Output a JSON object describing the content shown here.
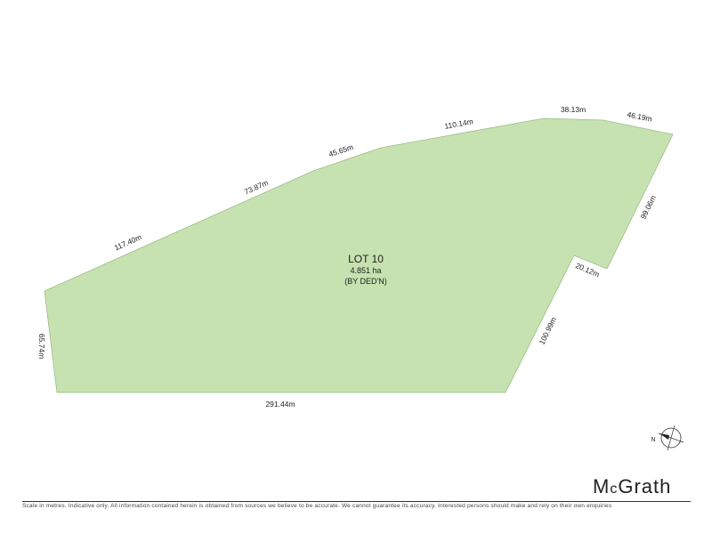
{
  "lot": {
    "name": "LOT 10",
    "area": "4.851 ha",
    "note": "(BY DED'N)",
    "fill_color": "#c6e2b0"
  },
  "dimensions": [
    "291.44m",
    "65.74m",
    "117.40m",
    "73.87m",
    "45.65m",
    "110.14m",
    "38.13m",
    "46.19m",
    "99.06m",
    "20.12m",
    "100.99m"
  ],
  "north_label": "N",
  "brand": {
    "logo_c": "M",
    "logo_small": "c",
    "logo_rest": "Grath"
  },
  "footer": {
    "disclaimer": "Scale in metres. Indicative only. All information contained herein is obtained from sources we believe to be accurate. We cannot guarantee its accuracy. Interested persons should make and rely on their own enquiries"
  }
}
